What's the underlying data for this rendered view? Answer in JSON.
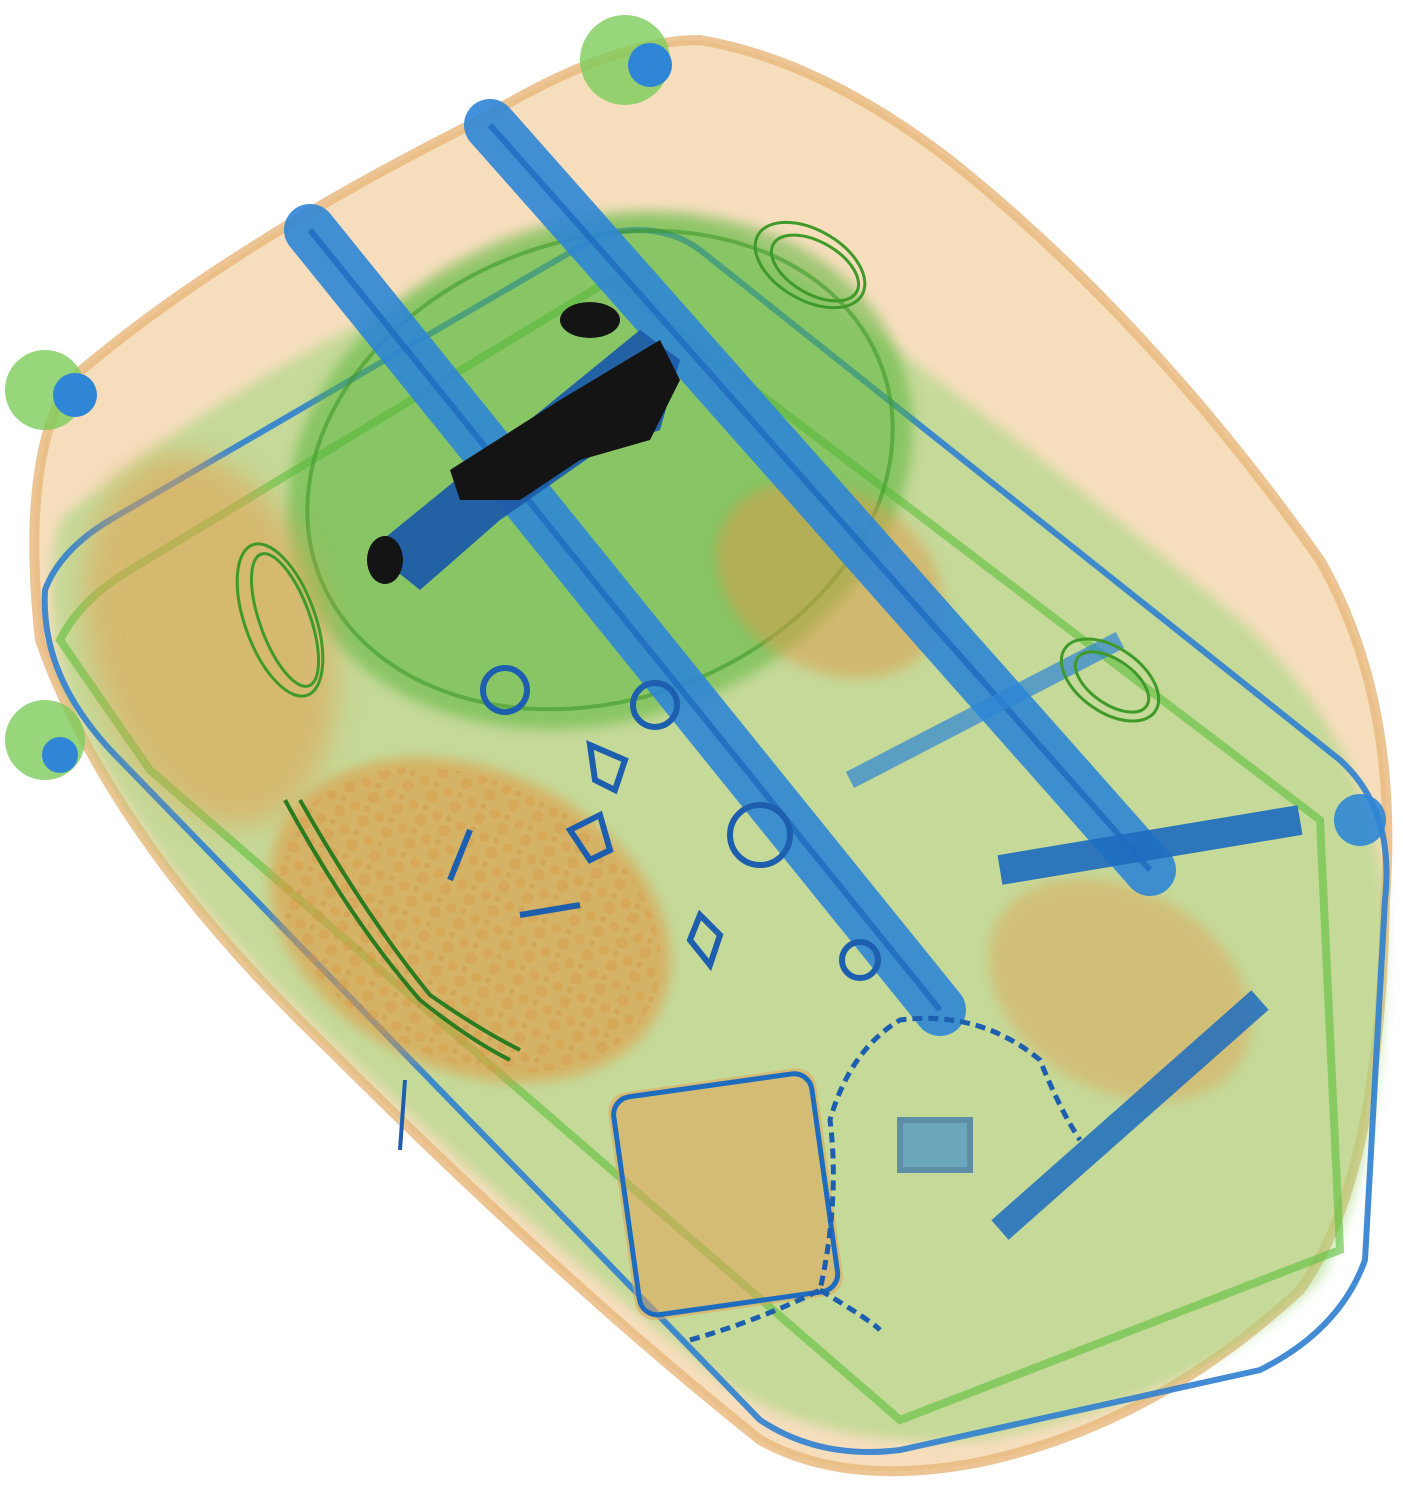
{
  "image": {
    "kind": "x-ray-baggage-scan",
    "background_color": "#ffffff",
    "palette": {
      "organic": "#e3a860",
      "organic_light": "#f4d2a8",
      "mixed": "#6cc24a",
      "mixed_light": "#a8dc84",
      "metal": "#2f86d6",
      "metal_dark": "#1556a8",
      "dense": "#141414"
    },
    "objects": [
      {
        "name": "suitcase-shell",
        "material": "organic"
      },
      {
        "name": "inner-lining",
        "material": "mixed"
      },
      {
        "name": "trolley-rail-left",
        "material": "metal"
      },
      {
        "name": "trolley-rail-right",
        "material": "metal"
      },
      {
        "name": "dense-block",
        "material": "dense"
      },
      {
        "name": "chain",
        "material": "metal"
      },
      {
        "name": "coiled-cables",
        "material": "mixed"
      },
      {
        "name": "wheel-assembly",
        "material": "metal"
      }
    ]
  }
}
